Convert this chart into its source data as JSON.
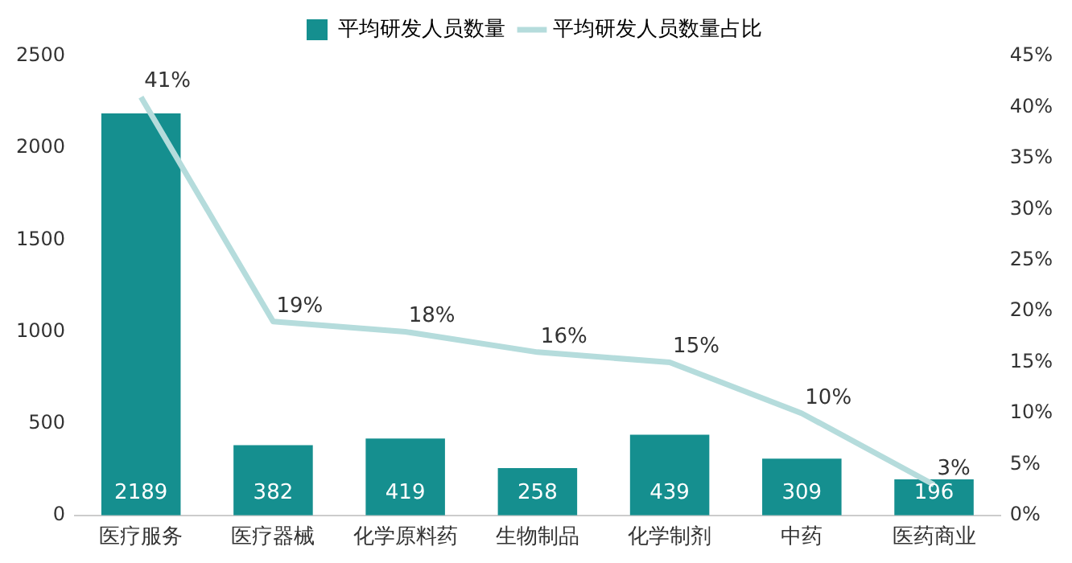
{
  "chart_data": {
    "type": "bar",
    "categories": [
      "医疗服务",
      "医疗器械",
      "化学原料药",
      "生物制品",
      "化学制剂",
      "中药",
      "医药商业"
    ],
    "series": [
      {
        "name": "平均研发人员数量",
        "color": "#158f8f",
        "values": [
          2189,
          382,
          419,
          258,
          439,
          309,
          196
        ],
        "value_labels": [
          "2189",
          "382",
          "419",
          "258",
          "439",
          "309",
          "196"
        ]
      },
      {
        "name": "平均研发人员数量占比",
        "type": "line",
        "axis": "y2",
        "color": "#b5dcdc",
        "values": [
          41,
          19,
          18,
          16,
          15,
          10,
          3
        ],
        "value_labels": [
          "41%",
          "19%",
          "18%",
          "16%",
          "15%",
          "10%",
          "3%"
        ]
      }
    ],
    "ylim": [
      0,
      2500
    ],
    "yticks": [
      0,
      500,
      1000,
      1500,
      2000,
      2500
    ],
    "y2lim": [
      0,
      45
    ],
    "y2ticks": [
      {
        "value": 0,
        "label": "0%"
      },
      {
        "value": 5,
        "label": "5%"
      },
      {
        "value": 10,
        "label": "10%"
      },
      {
        "value": 15,
        "label": "15%"
      },
      {
        "value": 20,
        "label": "20%"
      },
      {
        "value": 25,
        "label": "25%"
      },
      {
        "value": 30,
        "label": "30%"
      },
      {
        "value": 35,
        "label": "35%"
      },
      {
        "value": 40,
        "label": "40%"
      },
      {
        "value": 45,
        "label": "45%"
      }
    ],
    "grid": false,
    "legend": "top",
    "marker": "none",
    "line_style": "solid"
  }
}
